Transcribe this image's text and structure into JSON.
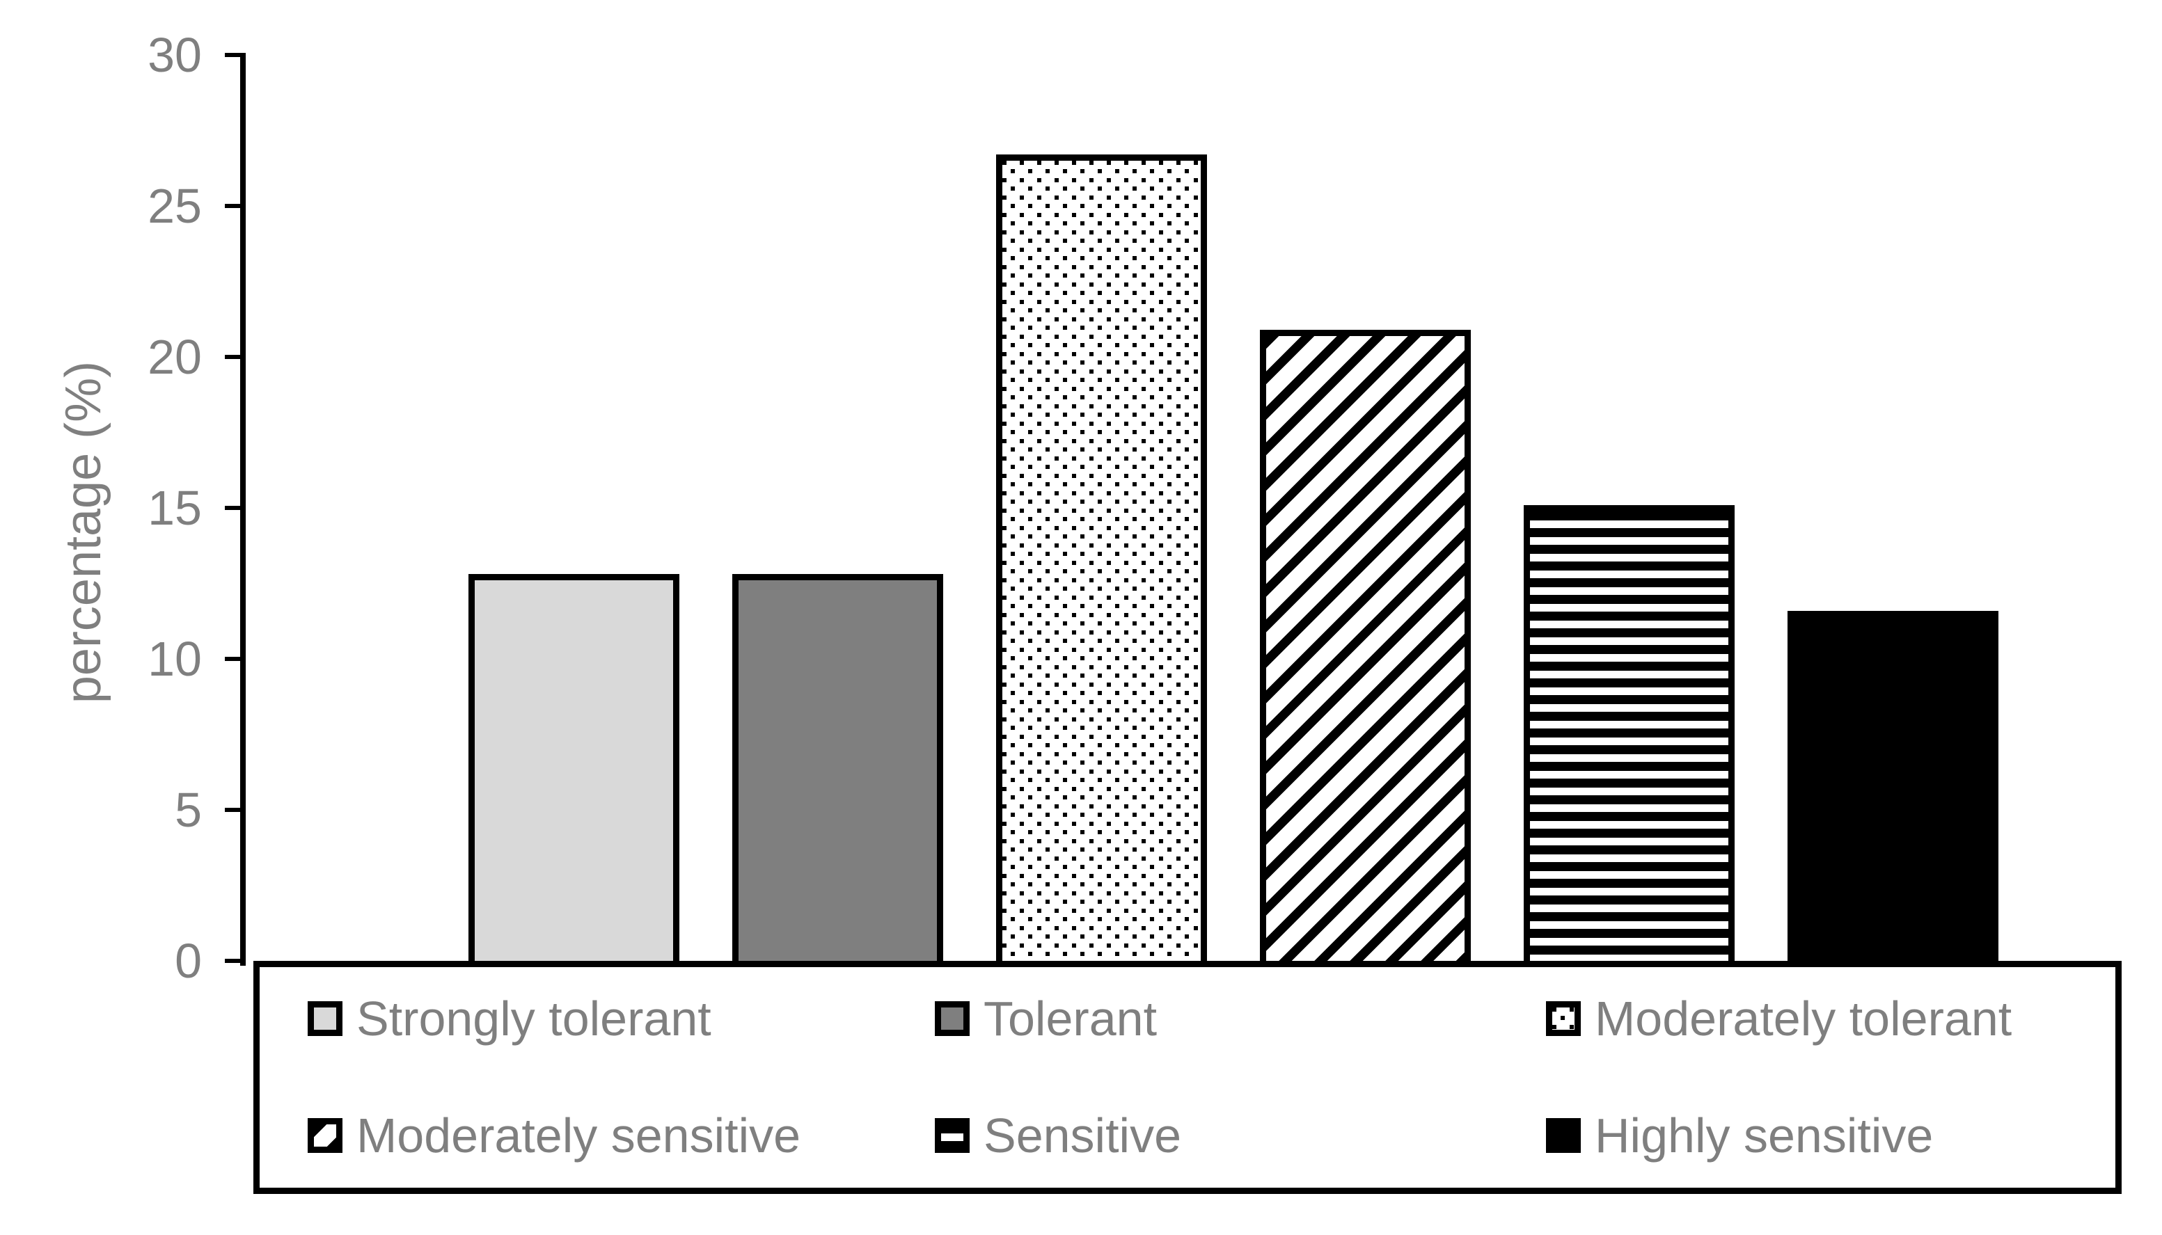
{
  "chart_data": {
    "type": "bar",
    "title": "",
    "xlabel": "",
    "ylabel": "percentage (%)",
    "ylim": [
      0,
      30
    ],
    "yticks": [
      0,
      5,
      10,
      15,
      20,
      25,
      30
    ],
    "grid": false,
    "legend_position": "bottom-box-two-rows",
    "categories": [
      "Strongly tolerant",
      "Tolerant",
      "Moderately tolerant",
      "Moderately sensitive",
      "Sensitive",
      "Highly sensitive"
    ],
    "values": [
      12.8,
      12.8,
      26.7,
      20.9,
      15.1,
      11.6
    ],
    "bar_patterns": [
      "solid-light-gray",
      "solid-gray",
      "dots",
      "diagonal-stripes",
      "horizontal-stripes",
      "solid-black"
    ],
    "colors": {
      "light_gray": "#d9d9d9",
      "medium_gray": "#7f7f7f",
      "black": "#000000",
      "pattern_background": "#ffffff",
      "axis_text": "#7f7f7f",
      "border": "#000000"
    }
  }
}
